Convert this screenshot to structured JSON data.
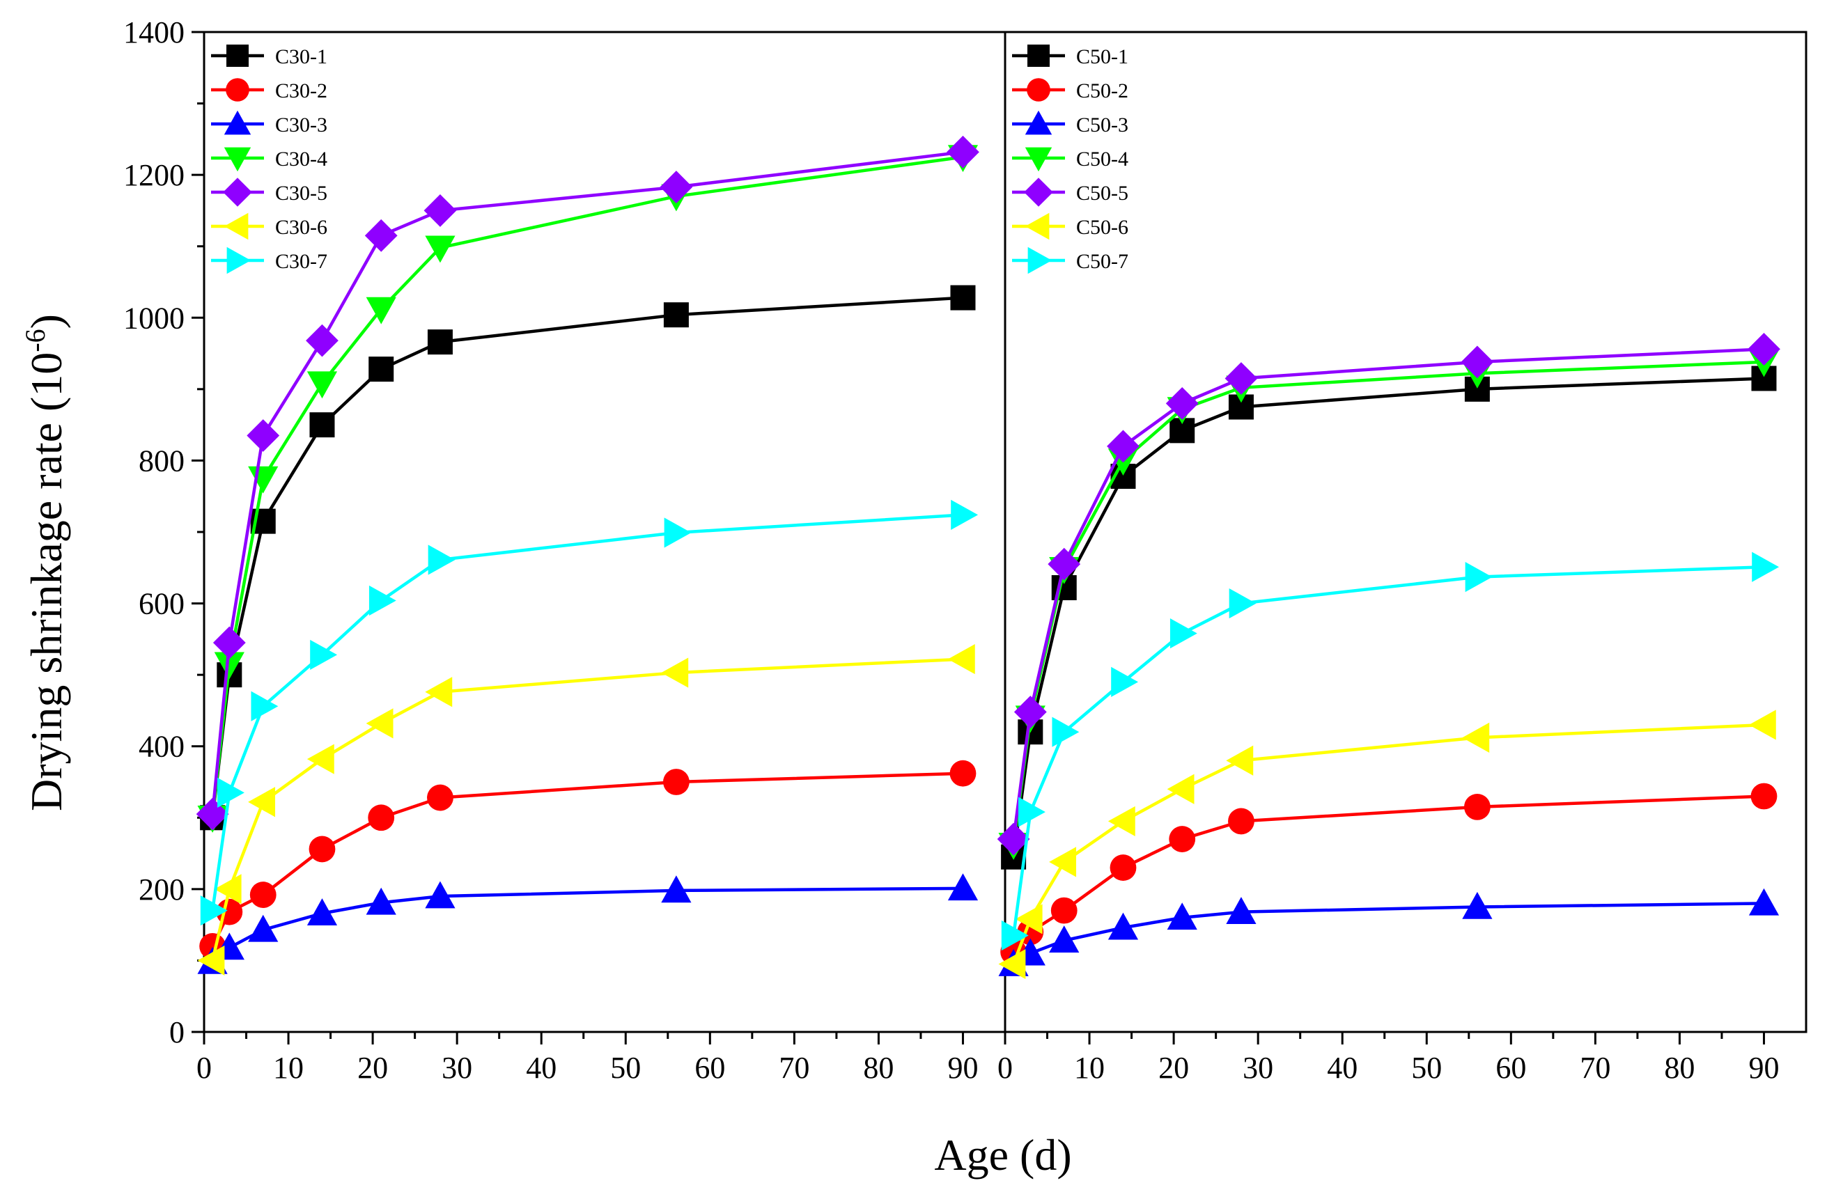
{
  "chart_data": {
    "type": "line",
    "ylabel_main": "Drying shrinkage rate (10",
    "ylabel_exp": "-6",
    "ylabel_close": ")",
    "xlabel": "Age (d)",
    "ylim": [
      0,
      1400
    ],
    "yticks": [
      "0",
      "200",
      "400",
      "600",
      "800",
      "1000",
      "1200",
      "1400"
    ],
    "xlim": [
      0,
      95
    ],
    "xticks": [
      "0",
      "10",
      "20",
      "30",
      "40",
      "50",
      "60",
      "70",
      "80",
      "90"
    ],
    "x": [
      1,
      3,
      7,
      14,
      21,
      28,
      56,
      90
    ],
    "panels": [
      {
        "series": [
          {
            "name": "C30-1",
            "color": "#000000",
            "marker": "square",
            "values": [
              300,
              500,
              715,
              850,
              928,
              966,
              1004,
              1028
            ]
          },
          {
            "name": "C30-2",
            "color": "#ff0000",
            "marker": "circle",
            "values": [
              120,
              168,
              192,
              256,
              300,
              328,
              350,
              362
            ]
          },
          {
            "name": "C30-3",
            "color": "#0000ff",
            "marker": "triangle-up",
            "values": [
              98,
              118,
              143,
              166,
              181,
              190,
              198,
              201
            ]
          },
          {
            "name": "C30-4",
            "color": "#00ff00",
            "marker": "triangle-down",
            "values": [
              300,
              515,
              775,
              908,
              1012,
              1098,
              1170,
              1225
            ]
          },
          {
            "name": "C30-5",
            "color": "#8f00ff",
            "marker": "diamond",
            "values": [
              305,
              545,
              835,
              968,
              1115,
              1150,
              1183,
              1232
            ]
          },
          {
            "name": "C30-6",
            "color": "#ffff00",
            "marker": "triangle-left",
            "values": [
              100,
              200,
              322,
              382,
              432,
              476,
              503,
              522
            ]
          },
          {
            "name": "C30-7",
            "color": "#00ffff",
            "marker": "triangle-right",
            "values": [
              170,
              335,
              456,
              528,
              604,
              661,
              699,
              724
            ]
          }
        ]
      },
      {
        "series": [
          {
            "name": "C50-1",
            "color": "#000000",
            "marker": "square",
            "values": [
              245,
              420,
              622,
              778,
              842,
              875,
              900,
              915
            ]
          },
          {
            "name": "C50-2",
            "color": "#ff0000",
            "marker": "circle",
            "values": [
              112,
              140,
              170,
              230,
              270,
              295,
              315,
              330
            ]
          },
          {
            "name": "C50-3",
            "color": "#0000ff",
            "marker": "triangle-up",
            "values": [
              95,
              110,
              128,
              146,
              160,
              168,
              175,
              180
            ]
          },
          {
            "name": "C50-4",
            "color": "#00ff00",
            "marker": "triangle-down",
            "values": [
              262,
              440,
              648,
              800,
              872,
              902,
              922,
              938
            ]
          },
          {
            "name": "C50-5",
            "color": "#8f00ff",
            "marker": "diamond",
            "values": [
              270,
              448,
              655,
              820,
              880,
              915,
              938,
              956
            ]
          },
          {
            "name": "C50-6",
            "color": "#ffff00",
            "marker": "triangle-left",
            "values": [
              95,
              158,
              238,
              295,
              340,
              380,
              412,
              430
            ]
          },
          {
            "name": "C50-7",
            "color": "#00ffff",
            "marker": "triangle-right",
            "values": [
              135,
              308,
              420,
              490,
              558,
              600,
              637,
              651
            ]
          }
        ]
      }
    ]
  }
}
